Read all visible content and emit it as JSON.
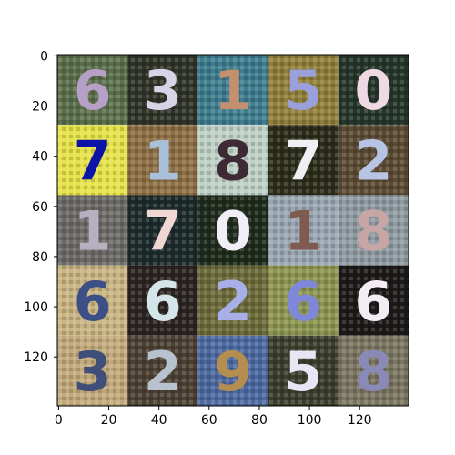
{
  "figure": {
    "x_ticks": [
      "0",
      "20",
      "40",
      "60",
      "80",
      "100",
      "120"
    ],
    "y_ticks": [
      "0",
      "20",
      "40",
      "60",
      "80",
      "100",
      "120"
    ],
    "x_tick_values": [
      0,
      20,
      40,
      60,
      80,
      100,
      120
    ],
    "y_tick_values": [
      0,
      20,
      40,
      60,
      80,
      100,
      120
    ],
    "x_range": [
      -0.5,
      139.5
    ],
    "y_range": [
      -0.5,
      139.5
    ],
    "y_inverted": true,
    "grid_rows": 5,
    "grid_cols": 5
  },
  "tiles": [
    {
      "digit": "6",
      "bg": "#5b6e4b",
      "fg": "#b7a0c8"
    },
    {
      "digit": "3",
      "bg": "#2f3328",
      "fg": "#d9d3e8"
    },
    {
      "digit": "1",
      "bg": "#3e7c8e",
      "fg": "#c48f6e"
    },
    {
      "digit": "5",
      "bg": "#8f7f3a",
      "fg": "#9aa0dc"
    },
    {
      "digit": "0",
      "bg": "#24352a",
      "fg": "#efd9e3"
    },
    {
      "digit": "7",
      "bg": "#e6e24a",
      "fg": "#0b14a6"
    },
    {
      "digit": "1",
      "bg": "#8c6f45",
      "fg": "#a9c0d8"
    },
    {
      "digit": "8",
      "bg": "#bfd0c6",
      "fg": "#3d2a34"
    },
    {
      "digit": "7",
      "bg": "#2b2c1a",
      "fg": "#efeff4"
    },
    {
      "digit": "2",
      "bg": "#5a4a34",
      "fg": "#b7c4e4"
    },
    {
      "digit": "1",
      "bg": "#6b6a66",
      "fg": "#b6b0c0"
    },
    {
      "digit": "7",
      "bg": "#1d2a2b",
      "fg": "#f0d7d4"
    },
    {
      "digit": "0",
      "bg": "#1f2b1c",
      "fg": "#f1eef8"
    },
    {
      "digit": "1",
      "bg": "#9aa6b2",
      "fg": "#7f5a4e"
    },
    {
      "digit": "8",
      "bg": "#8f9aa1",
      "fg": "#c9a6a6"
    },
    {
      "digit": "6",
      "bg": "#c9b483",
      "fg": "#3d4f87"
    },
    {
      "digit": "6",
      "bg": "#2a2322",
      "fg": "#d3e5e8"
    },
    {
      "digit": "2",
      "bg": "#6b6a3a",
      "fg": "#a7aee8"
    },
    {
      "digit": "6",
      "bg": "#8c9452",
      "fg": "#7f87d9"
    },
    {
      "digit": "6",
      "bg": "#1b1a18",
      "fg": "#f3ecf2"
    },
    {
      "digit": "3",
      "bg": "#c2a97c",
      "fg": "#3f4f79"
    },
    {
      "digit": "2",
      "bg": "#4b4032",
      "fg": "#b8c2cf"
    },
    {
      "digit": "9",
      "bg": "#4d6aa0",
      "fg": "#b58d4e"
    },
    {
      "digit": "5",
      "bg": "#3b3d2d",
      "fg": "#e7e6f4"
    },
    {
      "digit": "8",
      "bg": "#7a7560",
      "fg": "#8a8ab6"
    }
  ]
}
